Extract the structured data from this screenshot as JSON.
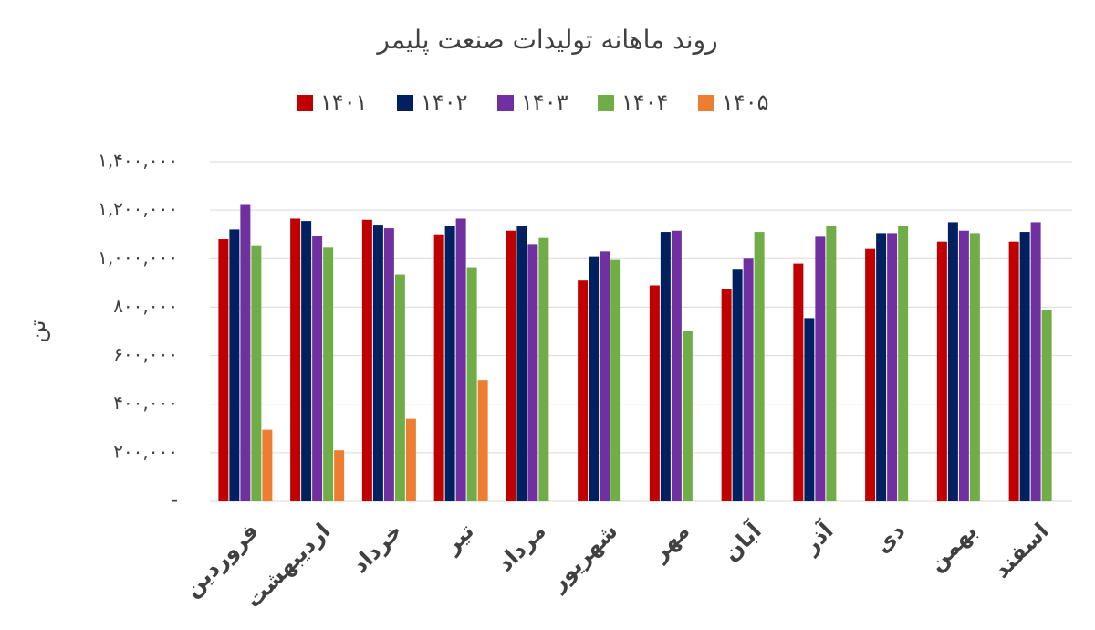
{
  "chart_data": {
    "type": "bar",
    "title": "روند ماهانه تولیدات صنعت پلیمر",
    "y_label": "تن",
    "categories": [
      "فروردین",
      "اردیبهشت",
      "خرداد",
      "تیر",
      "مرداد",
      "شهریور",
      "مهر",
      "آبان",
      "آذر",
      "دی",
      "بهمن",
      "اسفند"
    ],
    "series": [
      {
        "name": "۱۴۰۱",
        "color": "#c00000",
        "values": [
          1080000,
          1165000,
          1160000,
          1100000,
          1115000,
          910000,
          890000,
          875000,
          980000,
          1040000,
          1070000,
          1070000
        ]
      },
      {
        "name": "۱۴۰۲",
        "color": "#002060",
        "values": [
          1120000,
          1155000,
          1140000,
          1135000,
          1135000,
          1010000,
          1110000,
          955000,
          755000,
          1105000,
          1150000,
          1110000
        ]
      },
      {
        "name": "۱۴۰۳",
        "color": "#7030a0",
        "values": [
          1225000,
          1095000,
          1125000,
          1165000,
          1060000,
          1030000,
          1115000,
          1000000,
          1090000,
          1105000,
          1115000,
          1150000
        ]
      },
      {
        "name": "۱۴۰۴",
        "color": "#70ad47",
        "values": [
          1055000,
          1045000,
          935000,
          965000,
          1085000,
          995000,
          700000,
          1110000,
          1135000,
          1135000,
          1105000,
          790000
        ]
      },
      {
        "name": "۱۴۰۵",
        "color": "#ed7d31",
        "values": [
          295000,
          210000,
          340000,
          500000,
          null,
          null,
          null,
          null,
          null,
          null,
          null,
          null
        ]
      }
    ],
    "ylim": [
      0,
      1400000
    ],
    "yticks": [
      {
        "value": 0,
        "label": "-"
      },
      {
        "value": 200000,
        "label": "۲۰۰,۰۰۰"
      },
      {
        "value": 400000,
        "label": "۴۰۰,۰۰۰"
      },
      {
        "value": 600000,
        "label": "۶۰۰,۰۰۰"
      },
      {
        "value": 800000,
        "label": "۸۰۰,۰۰۰"
      },
      {
        "value": 1000000,
        "label": "۱,۰۰۰,۰۰۰"
      },
      {
        "value": 1200000,
        "label": "۱,۲۰۰,۰۰۰"
      },
      {
        "value": 1400000,
        "label": "۱,۴۰۰,۰۰۰"
      }
    ],
    "grid": true,
    "legend": "top"
  }
}
